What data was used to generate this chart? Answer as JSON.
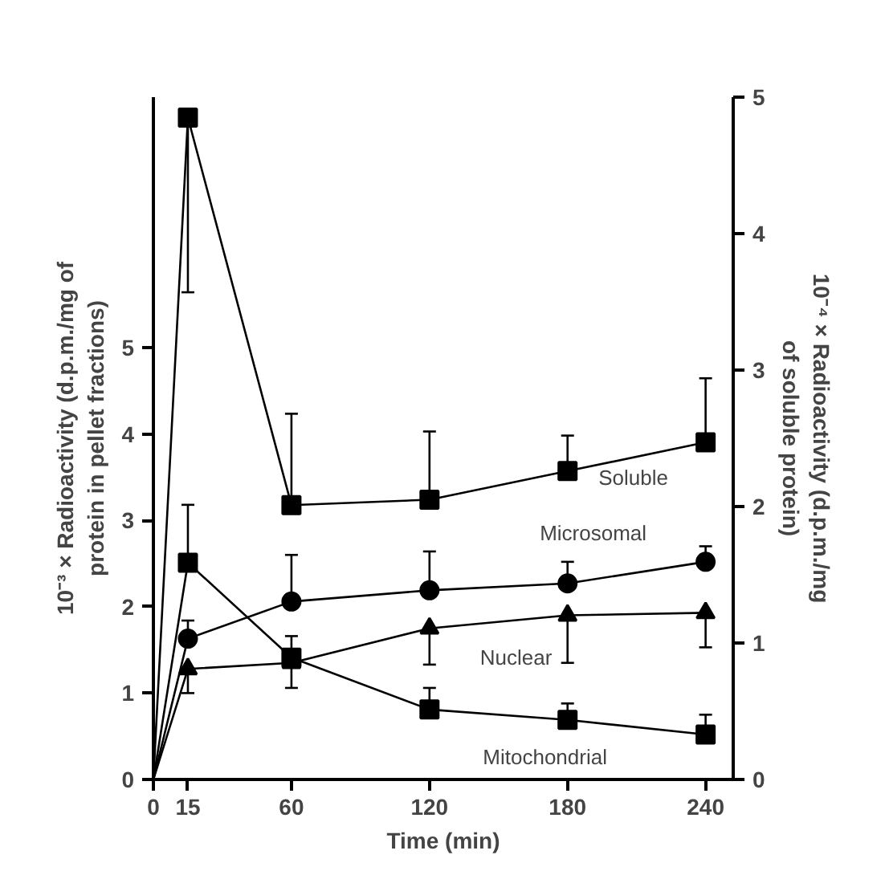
{
  "chart_data": {
    "type": "line",
    "x": [
      0,
      15,
      60,
      120,
      180,
      240
    ],
    "xlabel": "Time (min)",
    "ylabel": "10⁻³ × Radioactivity (d.p.m./mg of protein in pellet fractions)",
    "y2label": "10⁻⁴ × Radioactivity (d.p.m./mg of soluble protein)",
    "xlim": [
      0,
      252
    ],
    "xticks": [
      0,
      15,
      60,
      120,
      180,
      240
    ],
    "ylim": [
      0,
      7.9
    ],
    "yticks": [
      0,
      1,
      2,
      3,
      4,
      5
    ],
    "y2lim": [
      0,
      5
    ],
    "y2ticks": [
      0,
      1,
      2,
      3,
      4,
      5
    ],
    "grid": false,
    "line_style": "solid",
    "series": [
      {
        "name": "Soluble",
        "axis": "y2",
        "marker": "square",
        "color": "#000000",
        "values": [
          0,
          4.85,
          2.01,
          2.05,
          2.26,
          2.47
        ],
        "errors": [
          null,
          [
            3.57,
            4.85
          ],
          [
            2.01,
            2.68
          ],
          [
            2.05,
            2.55
          ],
          [
            2.26,
            2.52
          ],
          [
            2.47,
            2.94
          ]
        ]
      },
      {
        "name": "Microsomal",
        "marker": "circle",
        "color": "#000000",
        "values": [
          0,
          1.63,
          2.06,
          2.19,
          2.27,
          2.52
        ],
        "errors": [
          null,
          [
            1.63,
            1.84
          ],
          [
            2.06,
            2.6
          ],
          [
            2.19,
            2.64
          ],
          [
            2.27,
            2.52
          ],
          [
            2.52,
            2.7
          ]
        ]
      },
      {
        "name": "Nuclear",
        "marker": "triangle",
        "color": "#000000",
        "values": [
          0,
          1.28,
          1.35,
          1.75,
          1.9,
          1.93
        ],
        "errors": [
          null,
          [
            1.0,
            1.28
          ],
          [
            1.06,
            1.66
          ],
          [
            1.33,
            1.75
          ],
          [
            1.35,
            1.9
          ],
          [
            1.53,
            1.93
          ]
        ]
      },
      {
        "name": "Mitochondrial",
        "marker": "square",
        "color": "#000000",
        "values": [
          0,
          2.51,
          1.41,
          0.81,
          0.69,
          0.52
        ],
        "errors": [
          null,
          [
            2.51,
            3.18
          ],
          null,
          [
            0.81,
            1.06
          ],
          [
            0.69,
            0.88
          ],
          [
            0.52,
            0.75
          ]
        ]
      }
    ]
  }
}
